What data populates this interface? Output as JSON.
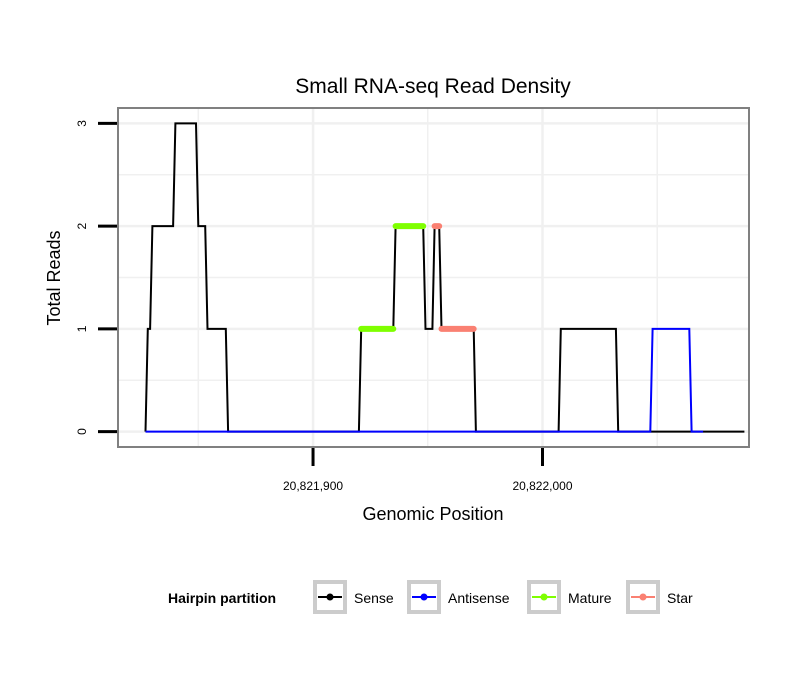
{
  "chart_data": {
    "type": "line",
    "title": "Small RNA-seq Read Density",
    "xlabel": "Genomic Position",
    "ylabel": "Total Reads",
    "xlim": [
      20821815,
      20822090
    ],
    "ylim": [
      -0.15,
      3.15
    ],
    "x_ticks": [
      {
        "value": 20821900,
        "label": "20,821,900"
      },
      {
        "value": 20822000,
        "label": "20,822,000"
      }
    ],
    "y_ticks": [
      {
        "value": 0,
        "label": "0"
      },
      {
        "value": 1,
        "label": "1"
      },
      {
        "value": 2,
        "label": "2"
      },
      {
        "value": 3,
        "label": "3"
      }
    ],
    "grid": true,
    "legend": {
      "title": "Hairpin partition",
      "position": "bottom",
      "entries": [
        {
          "name": "Sense",
          "color": "#000000"
        },
        {
          "name": "Antisense",
          "color": "#0000ff"
        },
        {
          "name": "Mature",
          "color": "#7fff00"
        },
        {
          "name": "Star",
          "color": "#fa8072"
        }
      ]
    },
    "series": [
      {
        "name": "Sense",
        "color": "#000000",
        "points": [
          [
            20821827,
            0
          ],
          [
            20821828,
            1
          ],
          [
            20821829,
            1
          ],
          [
            20821830,
            2
          ],
          [
            20821839,
            2
          ],
          [
            20821840,
            3
          ],
          [
            20821849,
            3
          ],
          [
            20821850,
            2
          ],
          [
            20821853,
            2
          ],
          [
            20821854,
            1
          ],
          [
            20821862,
            1
          ],
          [
            20821863,
            0
          ],
          [
            20821920,
            0
          ],
          [
            20821921,
            1
          ],
          [
            20821935,
            1
          ],
          [
            20821936,
            2
          ],
          [
            20821948,
            2
          ],
          [
            20821949,
            1
          ],
          [
            20821952,
            1
          ],
          [
            20821953,
            2
          ],
          [
            20821955,
            2
          ],
          [
            20821956,
            1
          ],
          [
            20821970,
            1
          ],
          [
            20821971,
            0
          ],
          [
            20822007,
            0
          ],
          [
            20822008,
            1
          ],
          [
            20822032,
            1
          ],
          [
            20822033,
            0
          ],
          [
            20822088,
            0
          ]
        ]
      },
      {
        "name": "Antisense",
        "color": "#0000ff",
        "points": [
          [
            20821827,
            0
          ],
          [
            20822047,
            0
          ],
          [
            20822048,
            1
          ],
          [
            20822064,
            1
          ],
          [
            20822065,
            0
          ],
          [
            20822070,
            0
          ]
        ]
      },
      {
        "name": "Mature",
        "color": "#7fff00",
        "points": [
          [
            20821921,
            1
          ],
          [
            20821935,
            1
          ],
          null,
          [
            20821936,
            2
          ],
          [
            20821948,
            2
          ]
        ]
      },
      {
        "name": "Star",
        "color": "#fa8072",
        "points": [
          [
            20821953,
            2
          ],
          [
            20821955,
            2
          ],
          null,
          [
            20821956,
            1
          ],
          [
            20821970,
            1
          ]
        ]
      }
    ]
  }
}
